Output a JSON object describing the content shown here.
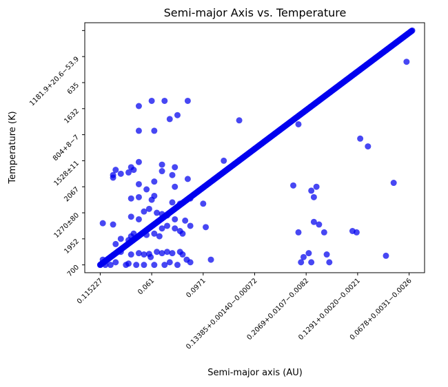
{
  "chart_data": {
    "type": "scatter",
    "title": "Semi-major Axis vs. Temperature",
    "xlabel": "Semi-major axis (AU)",
    "ylabel": "Temperature (K)",
    "x_axis_kind": "categorical",
    "y_axis_kind": "categorical",
    "xlim": [
      -0.3,
      6.3
    ],
    "ylim": [
      -0.3,
      9.3
    ],
    "xticks": [
      "0.115227",
      "0.061",
      "0.0971",
      "0.13385+0.00140−0.00072",
      "0.2069+0.0107−0.0082",
      "0.1291+0.0020−0.0021",
      "0.0678+0.0031−0.0026"
    ],
    "yticks": [
      "700",
      "1952",
      "1270±80",
      "2067",
      "1528±11",
      "804+8−7",
      "1632",
      "635",
      "1181.9+20.6−53.9",
      ""
    ],
    "grid": false,
    "marker_color": "#0000ee",
    "marker_alpha": 0.72,
    "trend": {
      "from": [
        0.0,
        0.0
      ],
      "to": [
        6.06,
        9.0
      ],
      "count": 620
    },
    "points": [
      [
        0.0,
        0.0
      ],
      [
        0.05,
        0.2
      ],
      [
        0.1,
        0.0
      ],
      [
        0.2,
        0.0
      ],
      [
        0.3,
        0.1
      ],
      [
        0.5,
        0.0
      ],
      [
        0.55,
        0.05
      ],
      [
        0.7,
        0.0
      ],
      [
        0.85,
        0.0
      ],
      [
        1.05,
        0.0
      ],
      [
        0.98,
        0.3
      ],
      [
        1.25,
        0.0
      ],
      [
        1.35,
        0.1
      ],
      [
        1.5,
        0.0
      ],
      [
        1.68,
        0.2
      ],
      [
        1.75,
        0.1
      ],
      [
        2.15,
        0.2
      ],
      [
        0.4,
        0.5
      ],
      [
        0.6,
        0.4
      ],
      [
        0.75,
        0.45
      ],
      [
        0.85,
        0.4
      ],
      [
        0.95,
        0.42
      ],
      [
        1.1,
        0.5
      ],
      [
        1.2,
        0.45
      ],
      [
        1.3,
        0.5
      ],
      [
        1.4,
        0.45
      ],
      [
        1.55,
        0.5
      ],
      [
        1.6,
        0.4
      ],
      [
        0.3,
        0.8
      ],
      [
        0.4,
        1.0
      ],
      [
        0.55,
        0.95
      ],
      [
        0.6,
        1.1
      ],
      [
        0.65,
        1.2
      ],
      [
        0.9,
        1.15
      ],
      [
        1.05,
        1.2
      ],
      [
        1.15,
        1.1
      ],
      [
        1.2,
        1.4
      ],
      [
        1.3,
        1.5
      ],
      [
        1.45,
        1.4
      ],
      [
        1.55,
        1.3
      ],
      [
        1.6,
        1.2
      ],
      [
        1.75,
        1.5
      ],
      [
        2.05,
        1.45
      ],
      [
        0.05,
        1.6
      ],
      [
        0.25,
        1.55
      ],
      [
        0.6,
        1.85
      ],
      [
        0.75,
        1.75
      ],
      [
        0.85,
        2.05
      ],
      [
        0.95,
        2.15
      ],
      [
        1.1,
        2.0
      ],
      [
        1.2,
        1.95
      ],
      [
        1.3,
        1.9
      ],
      [
        1.45,
        1.75
      ],
      [
        1.65,
        1.7
      ],
      [
        0.6,
        2.55
      ],
      [
        0.75,
        2.6
      ],
      [
        1.0,
        2.5
      ],
      [
        1.05,
        2.65
      ],
      [
        1.4,
        2.4
      ],
      [
        1.55,
        2.35
      ],
      [
        1.75,
        2.55
      ],
      [
        2.0,
        2.35
      ],
      [
        0.9,
        2.9
      ],
      [
        1.05,
        3.2
      ],
      [
        1.45,
        3.0
      ],
      [
        1.7,
        3.3
      ],
      [
        0.4,
        3.5
      ],
      [
        0.75,
        3.1
      ],
      [
        1.2,
        3.6
      ],
      [
        1.4,
        3.45
      ],
      [
        0.25,
        3.35
      ],
      [
        0.55,
        3.55
      ],
      [
        0.6,
        3.75
      ],
      [
        0.65,
        3.65
      ],
      [
        0.25,
        3.45
      ],
      [
        0.3,
        3.65
      ],
      [
        1.2,
        3.85
      ],
      [
        0.75,
        3.95
      ],
      [
        1.45,
        3.75
      ],
      [
        2.4,
        4.0
      ],
      [
        0.75,
        5.15
      ],
      [
        1.05,
        5.15
      ],
      [
        1.35,
        5.6
      ],
      [
        1.5,
        5.75
      ],
      [
        2.7,
        5.55
      ],
      [
        0.75,
        6.1
      ],
      [
        1.0,
        6.3
      ],
      [
        1.25,
        6.3
      ],
      [
        1.7,
        6.3
      ],
      [
        3.9,
        0.1
      ],
      [
        4.1,
        0.1
      ],
      [
        4.45,
        0.1
      ],
      [
        3.95,
        0.3
      ],
      [
        4.05,
        0.45
      ],
      [
        4.4,
        0.4
      ],
      [
        3.85,
        1.25
      ],
      [
        4.35,
        1.25
      ],
      [
        4.25,
        1.55
      ],
      [
        4.15,
        1.65
      ],
      [
        4.9,
        1.3
      ],
      [
        4.98,
        1.25
      ],
      [
        5.55,
        0.35
      ],
      [
        4.15,
        2.6
      ],
      [
        3.75,
        3.05
      ],
      [
        4.1,
        2.85
      ],
      [
        4.2,
        3.0
      ],
      [
        5.05,
        4.85
      ],
      [
        5.2,
        4.55
      ],
      [
        5.7,
        3.15
      ],
      [
        3.85,
        5.4
      ],
      [
        5.95,
        7.8
      ]
    ]
  }
}
